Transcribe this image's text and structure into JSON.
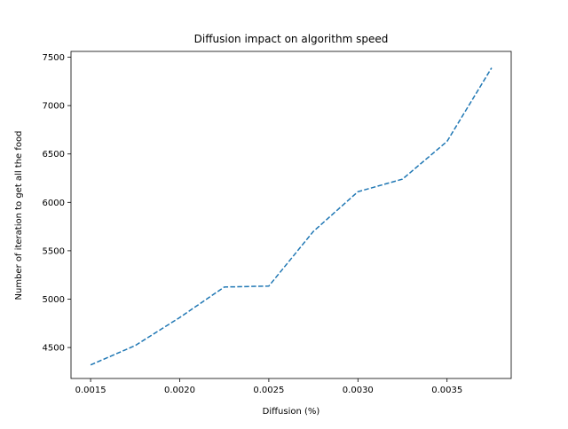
{
  "chart_data": {
    "type": "line",
    "title": "Diffusion impact on algorithm speed",
    "xlabel": "Diffusion (%)",
    "ylabel": "Number of iteration to get all the food",
    "xlim": [
      0.00139,
      0.00386
    ],
    "ylim": [
      4180,
      7560
    ],
    "grid": false,
    "legend": "none",
    "x_ticks": [
      0.0015,
      0.002,
      0.0025,
      0.003,
      0.0035
    ],
    "x_tick_labels": [
      "0.0015",
      "0.0020",
      "0.0025",
      "0.0030",
      "0.0035"
    ],
    "y_ticks": [
      4500,
      5000,
      5500,
      6000,
      6500,
      7000,
      7500
    ],
    "y_tick_labels": [
      "4500",
      "5000",
      "5500",
      "6000",
      "6500",
      "7000",
      "7500"
    ],
    "series": [
      {
        "color": "#1f77b4",
        "line_style": "dashed",
        "x": [
          0.0015,
          0.00175,
          0.002,
          0.00225,
          0.0025,
          0.00275,
          0.003,
          0.00325,
          0.0035,
          0.00375
        ],
        "y": [
          4320,
          4520,
          4810,
          5125,
          5135,
          5700,
          6110,
          6240,
          6630,
          7390
        ]
      }
    ]
  }
}
